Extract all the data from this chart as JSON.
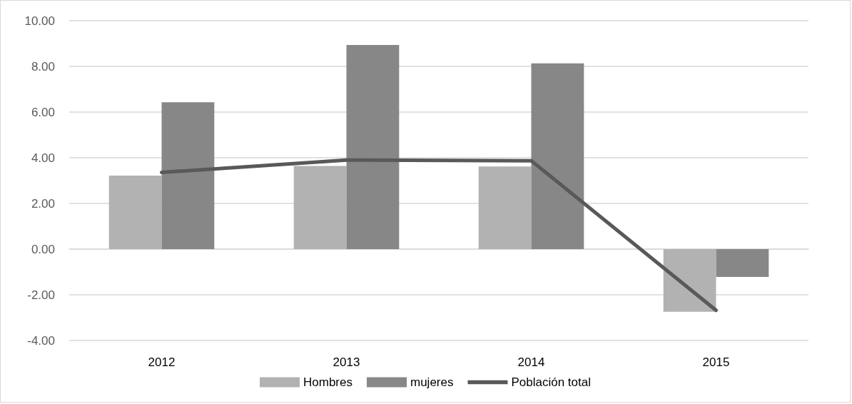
{
  "chart_data": {
    "type": "bar",
    "categories": [
      "2012",
      "2013",
      "2014",
      "2015"
    ],
    "series": [
      {
        "name": "Hombres",
        "color": "#b2b2b2",
        "values": [
          3.22,
          3.64,
          3.62,
          -2.74
        ]
      },
      {
        "name": "mujeres",
        "color": "#878787",
        "values": [
          6.43,
          8.94,
          8.13,
          -1.22
        ]
      },
      {
        "name": "Población total",
        "type": "line",
        "color": "#595959",
        "values": [
          3.36,
          3.9,
          3.87,
          -2.68
        ]
      }
    ],
    "ylim": [
      -4,
      10
    ],
    "yticks": [
      {
        "value": -4,
        "label": "-4.00"
      },
      {
        "value": -2,
        "label": "-2.00"
      },
      {
        "value": 0,
        "label": "0.00"
      },
      {
        "value": 2,
        "label": "2.00"
      },
      {
        "value": 4,
        "label": "4.00"
      },
      {
        "value": 6,
        "label": "6.00"
      },
      {
        "value": 8,
        "label": "8.00"
      },
      {
        "value": 10,
        "label": "10.00"
      }
    ],
    "grid": "y",
    "legend": "bottom",
    "marker": "none"
  }
}
